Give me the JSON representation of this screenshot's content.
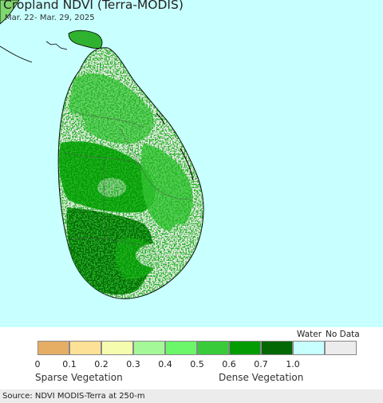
{
  "header": {
    "title": "Cropland NDVI (Terra-MODIS)",
    "date_range": "Mar. 22- Mar. 29, 2025"
  },
  "colors": {
    "ocean": "#c8ffff",
    "land_no_data": "#ececec",
    "coast": "#000000"
  },
  "legend": {
    "water_label": "Water",
    "nodata_label": "No Data",
    "swatches": [
      {
        "color": "#e6ad64"
      },
      {
        "color": "#fde196"
      },
      {
        "color": "#f5fcae"
      },
      {
        "color": "#a5f898"
      },
      {
        "color": "#6cf66a"
      },
      {
        "color": "#3acb3a"
      },
      {
        "color": "#039c03"
      },
      {
        "color": "#046804"
      },
      {
        "color": "#c8ffff"
      },
      {
        "color": "#ececec"
      }
    ],
    "ticks": [
      "0",
      "0.1",
      "0.2",
      "0.3",
      "0.4",
      "0.5",
      "0.6",
      "0.7",
      "1.0"
    ],
    "sparse_label": "Sparse Vegetation",
    "dense_label": "Dense Vegetation"
  },
  "footer": {
    "source": "Source: NDVI MODIS-Terra at 250-m"
  }
}
